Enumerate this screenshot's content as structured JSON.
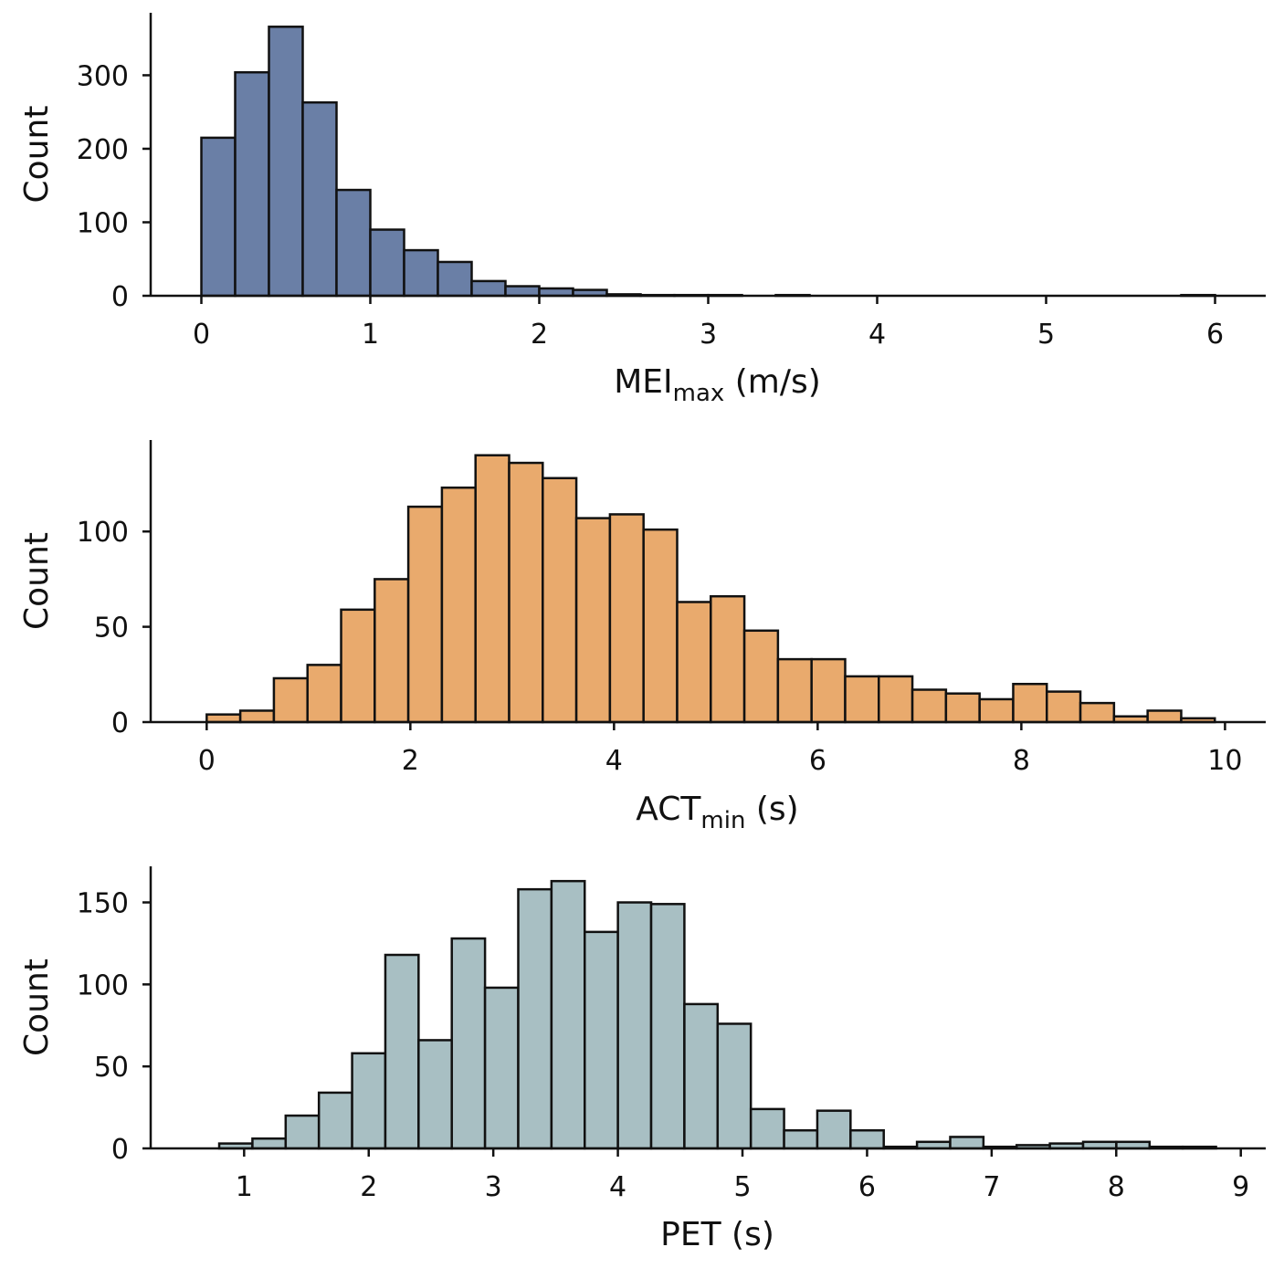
{
  "chart_data": [
    {
      "type": "bar",
      "subtype": "histogram",
      "xlabel_main": "MEI",
      "xlabel_sub": "max",
      "xlabel_unit": " (m/s)",
      "ylabel": "Count",
      "xlim": [
        -0.3,
        6.3
      ],
      "ylim": [
        0,
        385
      ],
      "xticks": [
        0,
        1,
        2,
        3,
        4,
        5,
        6
      ],
      "yticks": [
        0,
        100,
        200,
        300
      ],
      "bin_start": 0,
      "bin_width": 0.2,
      "values": [
        215,
        304,
        366,
        263,
        144,
        90,
        62,
        46,
        20,
        13,
        10,
        8,
        2,
        1,
        1,
        1,
        0,
        1,
        0,
        0,
        0,
        0,
        0,
        0,
        0,
        0,
        0,
        0,
        0,
        1
      ],
      "color": "#6a7fa6",
      "grid": false,
      "legend": "none"
    },
    {
      "type": "bar",
      "subtype": "histogram",
      "xlabel_main": "ACT",
      "xlabel_sub": "min",
      "xlabel_unit": " (s)",
      "ylabel": "Count",
      "xlim": [
        -0.55,
        10.4
      ],
      "ylim": [
        0,
        148
      ],
      "xticks": [
        0,
        2,
        4,
        6,
        8,
        10
      ],
      "yticks": [
        0,
        50,
        100
      ],
      "bin_start": 0,
      "bin_width": 0.33,
      "values": [
        4,
        6,
        23,
        30,
        59,
        75,
        113,
        123,
        140,
        136,
        128,
        107,
        109,
        101,
        63,
        66,
        48,
        33,
        33,
        24,
        24,
        17,
        15,
        12,
        20,
        16,
        10,
        3,
        6,
        2
      ],
      "color": "#e9aa6d",
      "grid": false,
      "legend": "none"
    },
    {
      "type": "bar",
      "subtype": "histogram",
      "xlabel_main": "PET",
      "xlabel_sub": "",
      "xlabel_unit": " (s)",
      "ylabel": "Count",
      "xlim": [
        0.25,
        9.2
      ],
      "ylim": [
        0,
        172
      ],
      "xticks": [
        1,
        2,
        3,
        4,
        5,
        6,
        7,
        8,
        9
      ],
      "yticks": [
        0,
        50,
        100,
        150
      ],
      "bin_start": 0.8,
      "bin_width": 0.2667,
      "values": [
        3,
        6,
        20,
        34,
        58,
        118,
        66,
        128,
        98,
        158,
        163,
        132,
        150,
        149,
        88,
        76,
        24,
        11,
        23,
        11,
        1,
        4,
        7,
        1,
        2,
        3,
        4,
        4,
        1,
        1
      ],
      "color": "#a8bfc3",
      "grid": false,
      "legend": "none"
    }
  ]
}
